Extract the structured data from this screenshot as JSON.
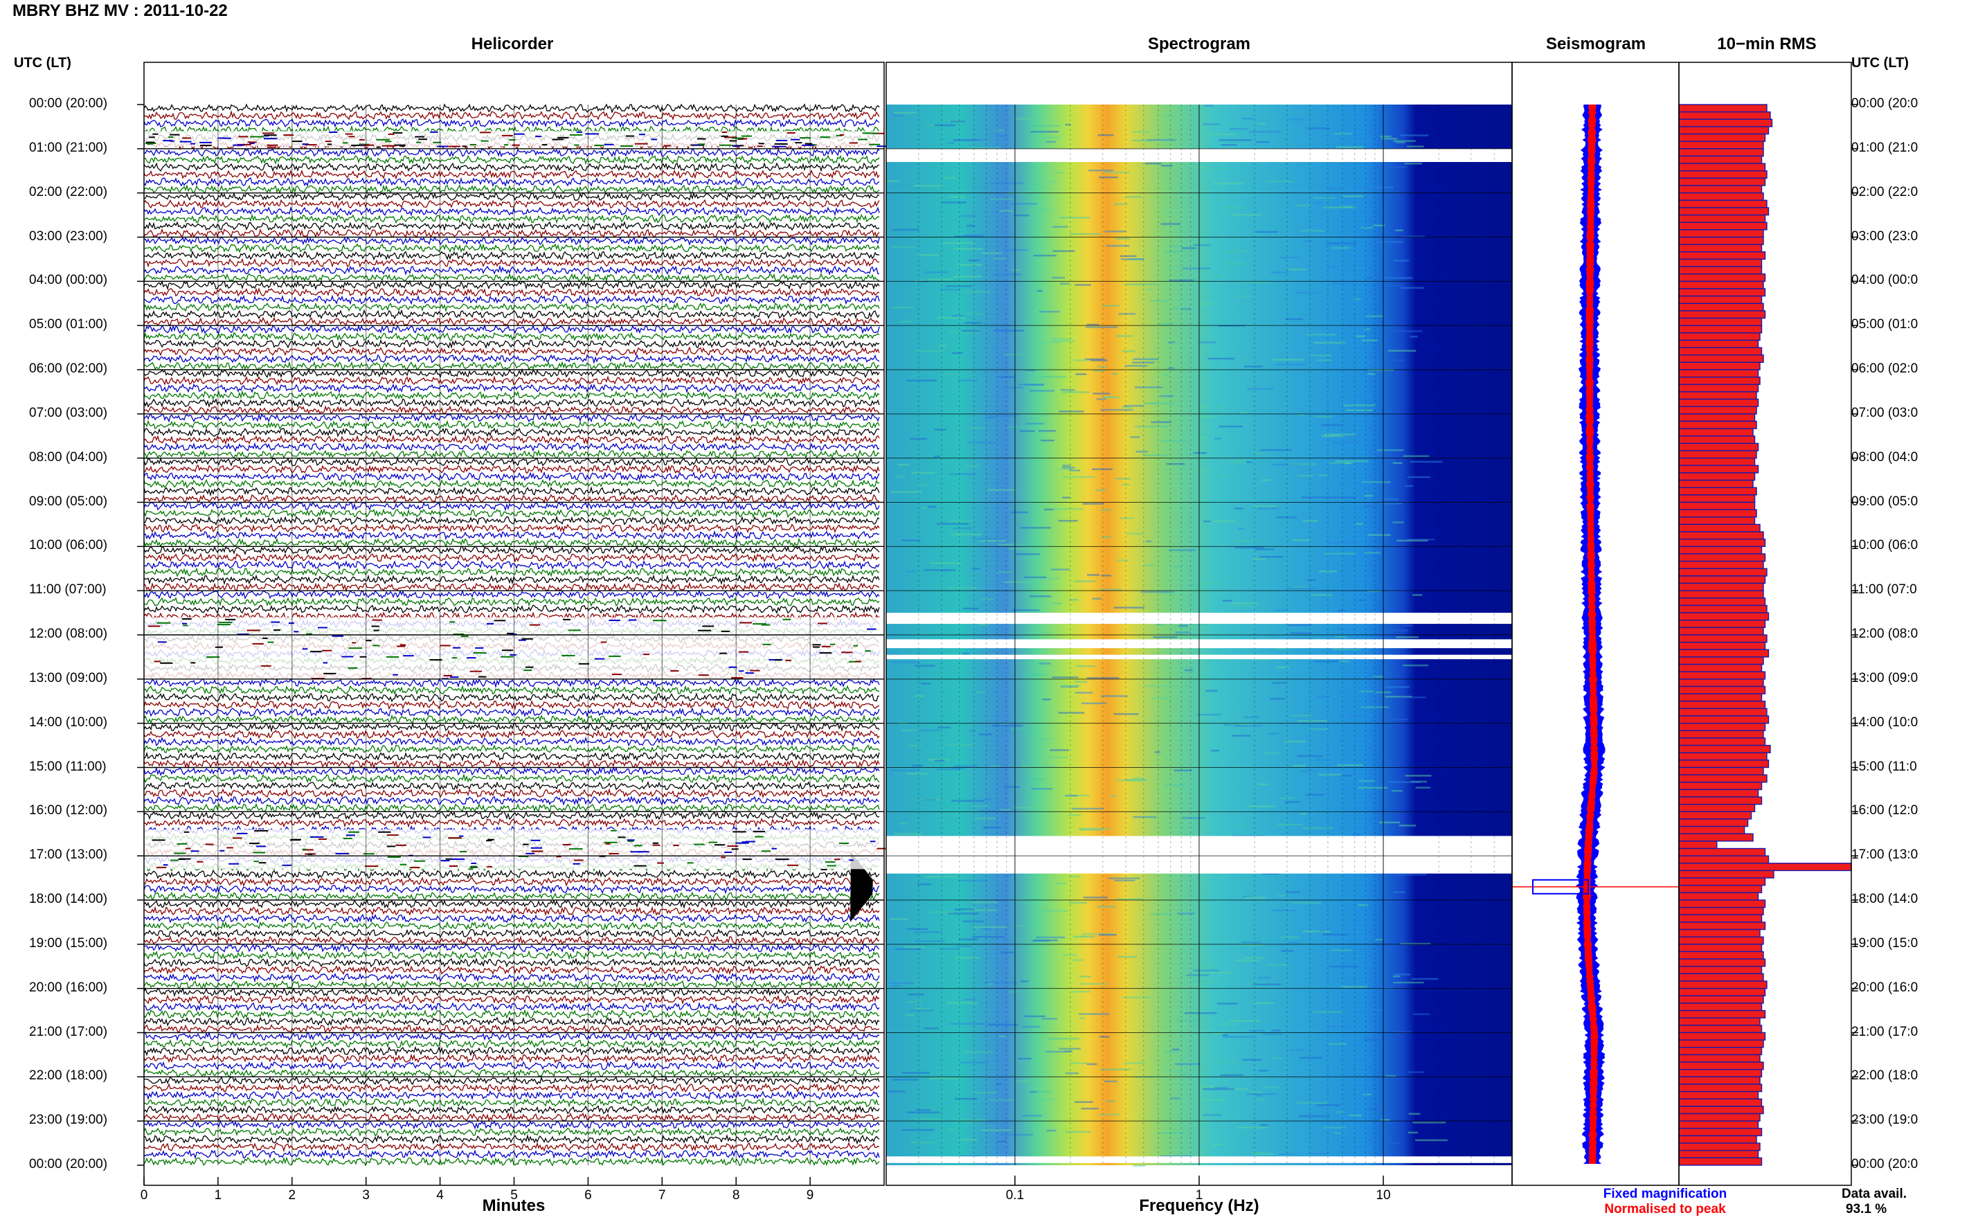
{
  "title": "MBRY BHZ MV : 2011-10-22",
  "panels": {
    "helicorder": "Helicorder",
    "spectrogram": "Spectrogram",
    "seismogram": "Seismogram",
    "rms": "10−min RMS"
  },
  "utc_header": "UTC (LT)",
  "hour_labels_left": [
    "00:00 (20:00)",
    "01:00 (21:00)",
    "02:00 (22:00)",
    "03:00 (23:00)",
    "04:00 (00:00)",
    "05:00 (01:00)",
    "06:00 (02:00)",
    "07:00 (03:00)",
    "08:00 (04:00)",
    "09:00 (05:00)",
    "10:00 (06:00)",
    "11:00 (07:00)",
    "12:00 (08:00)",
    "13:00 (09:00)",
    "14:00 (10:00)",
    "15:00 (11:00)",
    "16:00 (12:00)",
    "17:00 (13:00)",
    "18:00 (14:00)",
    "19:00 (15:00)",
    "20:00 (16:00)",
    "21:00 (17:00)",
    "22:00 (18:00)",
    "23:00 (19:00)",
    "00:00 (20:00)"
  ],
  "hour_labels_right": [
    "00:00 (20:0",
    "01:00 (21:0",
    "02:00 (22:0",
    "03:00 (23:0",
    "04:00 (00:0",
    "05:00 (01:0",
    "06:00 (02:0",
    "07:00 (03:0",
    "08:00 (04:0",
    "09:00 (05:0",
    "10:00 (06:0",
    "11:00 (07:0",
    "12:00 (08:0",
    "13:00 (09:0",
    "14:00 (10:0",
    "15:00 (11:0",
    "16:00 (12:0",
    "17:00 (13:0",
    "18:00 (14:0",
    "19:00 (15:0",
    "20:00 (16:0",
    "21:00 (17:0",
    "22:00 (18:0",
    "23:00 (19:0",
    "00:00 (20:0"
  ],
  "x_axis_minutes": {
    "label": "Minutes",
    "ticks": [
      "0",
      "1",
      "2",
      "3",
      "4",
      "5",
      "6",
      "7",
      "8",
      "9"
    ]
  },
  "x_axis_frequency": {
    "label": "Frequency (Hz)",
    "ticks": [
      "0.1",
      "1",
      "10"
    ]
  },
  "legend": {
    "fixed": "Fixed magnification",
    "normalised": "Normalised to peak"
  },
  "data_avail": {
    "label": "Data avail.",
    "value": "93.1 %"
  },
  "colors": {
    "trace_cycle": [
      "#000000",
      "#8b0000",
      "#0000c8",
      "#007800"
    ],
    "fixed_magnification": "#0000ff",
    "normalised_to_peak": "#ff0000",
    "rms_bar_fill": "#ee1c1c",
    "rms_bar_edge": "#1a1aa8"
  },
  "chart_data": [
    {
      "type": "heatmap",
      "title": "Helicorder",
      "xlabel": "Minutes",
      "xlim": [
        0,
        10
      ],
      "ylabel": "UTC (LT)",
      "rows_per_hour": 6,
      "minutes_per_row": 10,
      "event_hour_utc": 17.7,
      "data_gaps_utc_hours": [
        [
          0.6,
          0.95
        ],
        [
          11.6,
          13.0
        ],
        [
          16.4,
          17.3
        ]
      ]
    },
    {
      "type": "heatmap",
      "title": "Spectrogram",
      "xlabel": "Frequency (Hz)",
      "x_scale": "log",
      "xlim": [
        0.02,
        50
      ],
      "peak_energy_hz": [
        0.25,
        0.4
      ],
      "high_frequency_cutoff_hz": 15,
      "time_gaps_utc_hours": [
        [
          1.0,
          1.3
        ],
        [
          11.5,
          11.75
        ],
        [
          12.1,
          12.3
        ],
        [
          12.45,
          12.55
        ],
        [
          16.55,
          17.4
        ],
        [
          23.8,
          23.95
        ]
      ]
    },
    {
      "type": "line",
      "title": "Seismogram",
      "series": [
        {
          "name": "Fixed magnification",
          "color": "#0000ff"
        },
        {
          "name": "Normalised to peak",
          "color": "#ff0000"
        }
      ],
      "event_hour_utc": 17.7
    },
    {
      "type": "bar",
      "title": "10−min RMS",
      "orientation": "horizontal",
      "bins": 144,
      "relative_rms": [
        0.51,
        0.53,
        0.54,
        0.52,
        0.5,
        0.49,
        0.49,
        0.48,
        0.5,
        0.51,
        0.5,
        0.48,
        0.49,
        0.51,
        0.52,
        0.5,
        0.51,
        0.49,
        0.49,
        0.48,
        0.5,
        0.48,
        0.48,
        0.5,
        0.49,
        0.5,
        0.48,
        0.49,
        0.5,
        0.48,
        0.48,
        0.47,
        0.46,
        0.48,
        0.49,
        0.47,
        0.46,
        0.47,
        0.46,
        0.45,
        0.46,
        0.45,
        0.44,
        0.45,
        0.43,
        0.44,
        0.46,
        0.45,
        0.44,
        0.46,
        0.44,
        0.43,
        0.45,
        0.44,
        0.44,
        0.45,
        0.44,
        0.47,
        0.49,
        0.5,
        0.48,
        0.5,
        0.49,
        0.51,
        0.5,
        0.49,
        0.49,
        0.5,
        0.51,
        0.52,
        0.5,
        0.49,
        0.51,
        0.5,
        0.52,
        0.49,
        0.48,
        0.5,
        0.49,
        0.5,
        0.48,
        0.5,
        0.51,
        0.52,
        0.5,
        0.49,
        0.5,
        0.53,
        0.51,
        0.52,
        0.49,
        0.51,
        0.48,
        0.46,
        0.48,
        0.44,
        0.42,
        0.4,
        0.38,
        0.43,
        0.22,
        0.5,
        0.52,
        1.0,
        0.55,
        0.5,
        0.48,
        0.46,
        0.5,
        0.49,
        0.48,
        0.5,
        0.47,
        0.49,
        0.48,
        0.49,
        0.5,
        0.48,
        0.49,
        0.51,
        0.5,
        0.49,
        0.48,
        0.5,
        0.47,
        0.48,
        0.5,
        0.49,
        0.48,
        0.47,
        0.49,
        0.48,
        0.47,
        0.48,
        0.46,
        0.48,
        0.49,
        0.47,
        0.46,
        0.48,
        0.45,
        0.47,
        0.46,
        0.48
      ]
    }
  ]
}
